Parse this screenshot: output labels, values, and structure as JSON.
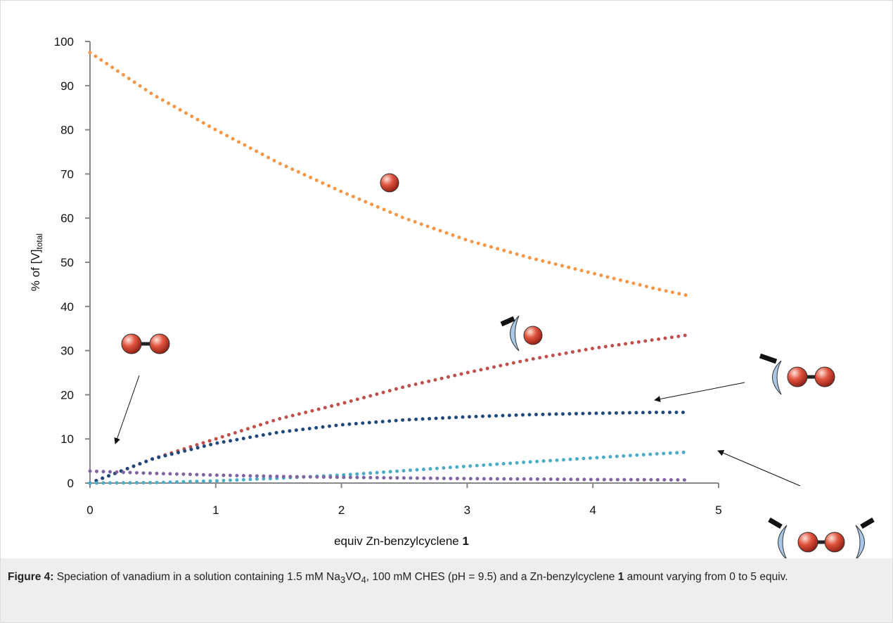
{
  "chart_data": {
    "type": "line",
    "x": [
      0,
      0.5,
      1,
      1.5,
      2,
      2.5,
      3,
      3.5,
      4,
      4.5,
      4.75
    ],
    "series": [
      {
        "color": "#f79646",
        "values": [
          97.5,
          88,
          80,
          72.5,
          66,
          60,
          55,
          51,
          47.5,
          44,
          42.5
        ]
      },
      {
        "color": "#c0504d",
        "values": [
          0,
          5.5,
          10,
          14.5,
          18,
          21.8,
          25,
          28,
          30.5,
          32.5,
          33.5
        ]
      },
      {
        "color": "#1f497d",
        "values": [
          0,
          5.5,
          9,
          11.5,
          13.2,
          14.3,
          15,
          15.5,
          15.8,
          16,
          16
        ]
      },
      {
        "color": "#4bacc6",
        "values": [
          0,
          0.1,
          0.5,
          1.1,
          1.8,
          2.8,
          3.8,
          4.8,
          5.7,
          6.6,
          7
        ]
      },
      {
        "color": "#8064a2",
        "values": [
          2.7,
          2.2,
          1.8,
          1.5,
          1.3,
          1.15,
          1.0,
          0.9,
          0.8,
          0.75,
          0.7
        ]
      }
    ],
    "xlim": [
      0,
      5
    ],
    "xticks": [
      0,
      1,
      2,
      3,
      4,
      5
    ],
    "ylim": [
      0,
      100
    ],
    "yticks": [
      0,
      10,
      20,
      30,
      40,
      50,
      60,
      70,
      80,
      90,
      100
    ],
    "grid": false,
    "x_label": [
      "equiv Zn-benzylcyclene ",
      "1"
    ],
    "y_label": [
      "% of [V]",
      "total"
    ],
    "caption": [
      "Figure 4:",
      " Speciation of vanadium in a solution containing 1.5 mM Na",
      "3",
      "VO",
      "4",
      ", 100 mM CHES (pH = 9.5) and a Zn-benzylcyclene ",
      "1",
      " amount varying from 0 to 5 equiv."
    ]
  }
}
